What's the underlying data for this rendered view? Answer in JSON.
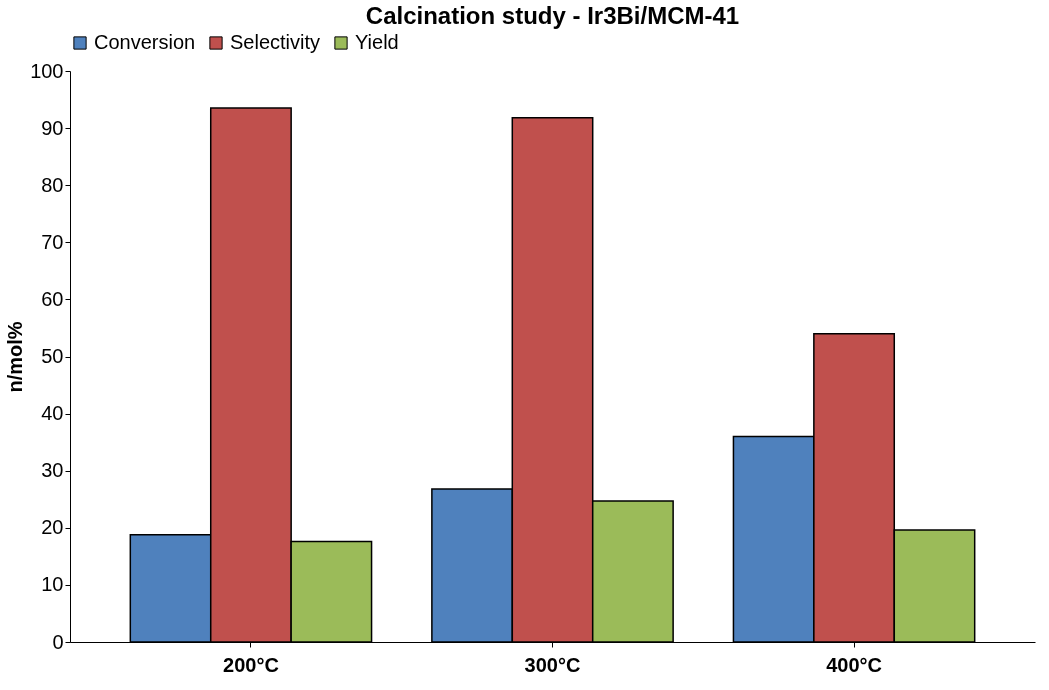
{
  "chart_data": {
    "type": "bar",
    "title": "Calcination study - Ir3Bi/MCM-41",
    "ylabel": "n/mol%",
    "categories": [
      "200°C",
      "300°C",
      "400°C"
    ],
    "series": [
      {
        "name": "Conversion",
        "color": "#4f81bd",
        "values": [
          18.8,
          26.8,
          36.0
        ]
      },
      {
        "name": "Selectivity",
        "color": "#c0504d",
        "values": [
          93.5,
          91.8,
          54.0
        ]
      },
      {
        "name": "Yield",
        "color": "#9bbb59",
        "values": [
          17.6,
          24.7,
          19.6
        ]
      }
    ],
    "ylim": [
      0,
      100
    ],
    "yticks": [
      0,
      10,
      20,
      30,
      40,
      50,
      60,
      70,
      80,
      90,
      100
    ],
    "grid": false,
    "legend": "top"
  }
}
